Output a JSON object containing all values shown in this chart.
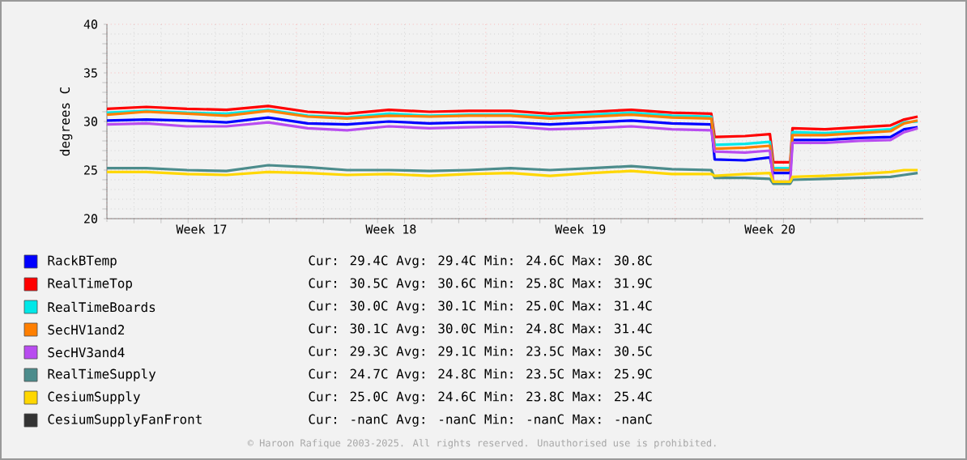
{
  "chart_data": {
    "type": "line",
    "ylabel": "degrees C",
    "x": [
      "2025-04-21T00:00",
      "2025-04-22T11:00",
      "2025-04-23T23:00",
      "2025-04-25T10:00",
      "2025-04-26T23:00",
      "2025-04-28T10:00",
      "2025-04-29T21:00",
      "2025-05-01T10:00",
      "2025-05-02T22:00",
      "2025-05-04T09:00",
      "2025-05-05T22:00",
      "2025-05-07T09:00",
      "2025-05-08T22:00",
      "2025-05-10T09:00",
      "2025-05-11T21:00",
      "2025-05-13T08:00",
      "2025-05-13T11:00",
      "2025-05-14T14:00",
      "2025-05-15T12:00",
      "2025-05-15T15:00",
      "2025-05-16T06:00",
      "2025-05-16T08:00",
      "2025-05-17T13:00",
      "2025-05-18T19:00",
      "2025-05-19T23:00",
      "2025-05-20T11:00",
      "2025-05-20T23:00"
    ],
    "xlim": [
      "2025-04-21T00:00",
      "2025-05-21T04:00"
    ],
    "xticks": [
      {
        "value": "2025-04-21",
        "label": null
      },
      {
        "value": "2025-04-28",
        "label": null
      },
      {
        "value": "2025-05-05",
        "label": null
      },
      {
        "value": "2025-05-12",
        "label": null
      },
      {
        "value": "2025-05-19",
        "label": null
      },
      {
        "value": "2025-04-24T12:00",
        "label": "Week 17"
      },
      {
        "value": "2025-05-01T12:00",
        "label": "Week 18"
      },
      {
        "value": "2025-05-08T12:00",
        "label": "Week 19"
      },
      {
        "value": "2025-05-15T12:00",
        "label": "Week 20"
      }
    ],
    "ylim": [
      20,
      40
    ],
    "yticks": [
      20,
      25,
      30,
      35,
      40
    ],
    "grid": true,
    "legend": "bottom",
    "marker": "none",
    "line_style": "solid",
    "series": [
      {
        "name": "RackBTemp",
        "color": "#0000ff",
        "values": [
          30.1,
          30.2,
          30.1,
          29.9,
          30.4,
          29.8,
          29.7,
          30.0,
          29.8,
          29.9,
          29.9,
          29.7,
          29.9,
          30.1,
          29.8,
          29.7,
          26.1,
          26.0,
          26.3,
          24.7,
          24.7,
          28.1,
          28.1,
          28.3,
          28.4,
          29.2,
          29.4
        ]
      },
      {
        "name": "RealTimeTop",
        "color": "#ff0000",
        "values": [
          31.3,
          31.5,
          31.3,
          31.2,
          31.6,
          31.0,
          30.8,
          31.2,
          31.0,
          31.1,
          31.1,
          30.8,
          31.0,
          31.2,
          30.9,
          30.8,
          28.4,
          28.5,
          28.7,
          25.8,
          25.8,
          29.3,
          29.2,
          29.4,
          29.6,
          30.2,
          30.5
        ]
      },
      {
        "name": "RealTimeBoards",
        "color": "#00e8e8",
        "values": [
          30.9,
          31.1,
          30.9,
          30.8,
          31.2,
          30.6,
          30.4,
          30.8,
          30.6,
          30.7,
          30.7,
          30.5,
          30.7,
          30.9,
          30.6,
          30.5,
          27.6,
          27.7,
          27.9,
          25.2,
          25.2,
          28.9,
          28.8,
          29.0,
          29.2,
          29.9,
          30.0
        ]
      },
      {
        "name": "SecHV1and2",
        "color": "#ff7f00",
        "values": [
          30.7,
          31.0,
          30.8,
          30.6,
          31.1,
          30.5,
          30.3,
          30.6,
          30.5,
          30.6,
          30.6,
          30.3,
          30.5,
          30.7,
          30.4,
          30.3,
          27.2,
          27.3,
          27.5,
          25.0,
          25.0,
          28.6,
          28.6,
          28.8,
          29.0,
          29.8,
          30.1
        ]
      },
      {
        "name": "SecHV3and4",
        "color": "#b84cf0",
        "values": [
          29.7,
          29.8,
          29.5,
          29.5,
          29.9,
          29.3,
          29.1,
          29.5,
          29.3,
          29.4,
          29.5,
          29.2,
          29.3,
          29.5,
          29.2,
          29.1,
          26.9,
          26.8,
          27.0,
          23.8,
          23.8,
          27.8,
          27.8,
          28.0,
          28.1,
          28.9,
          29.3
        ]
      },
      {
        "name": "RealTimeSupply",
        "color": "#4c8c8c",
        "values": [
          25.2,
          25.2,
          25.0,
          24.9,
          25.5,
          25.3,
          25.0,
          25.0,
          24.9,
          25.0,
          25.2,
          25.0,
          25.2,
          25.4,
          25.1,
          25.0,
          24.2,
          24.2,
          24.1,
          23.6,
          23.6,
          24.0,
          24.1,
          24.2,
          24.3,
          24.5,
          24.7
        ]
      },
      {
        "name": "CesiumSupply",
        "color": "#ffd700",
        "values": [
          24.8,
          24.8,
          24.6,
          24.5,
          24.8,
          24.7,
          24.5,
          24.6,
          24.4,
          24.6,
          24.7,
          24.4,
          24.7,
          24.9,
          24.6,
          24.6,
          24.4,
          24.6,
          24.7,
          23.8,
          23.8,
          24.3,
          24.4,
          24.6,
          24.8,
          25.0,
          25.0
        ]
      },
      {
        "name": "CesiumSupplyFanFront",
        "color": "#333333",
        "values": [
          null,
          null,
          null,
          null,
          null,
          null,
          null,
          null,
          null,
          null,
          null,
          null,
          null,
          null,
          null,
          null,
          null,
          null,
          null,
          null,
          null,
          null,
          null,
          null,
          null,
          null,
          null
        ]
      }
    ],
    "annotations": [
      "Cur: 29.4C   Avg: 29.4C   Min: 24.6C   Max: 30.8C",
      "Cur: 30.5C   Avg: 30.6C   Min: 25.8C   Max: 31.9C",
      "Cur: 30.0C   Avg: 30.1C   Min: 25.0C   Max: 31.4C",
      "Cur: 30.1C   Avg: 30.0C   Min: 24.8C   Max: 31.4C",
      "Cur: 29.3C   Avg: 29.1C   Min: 23.5C   Max: 30.5C",
      "Cur: 24.7C   Avg: 24.8C   Min: 23.5C   Max: 25.9C",
      "Cur: 25.0C   Avg: 24.6C   Min: 23.8C   Max: 25.4C",
      "Cur: -nanC   Avg: -nanC   Min: -nanC   Max: -nanC",
      "© Haroon Rafique 2003-2025. All rights reserved. Unauthorised use is prohibited."
    ]
  }
}
